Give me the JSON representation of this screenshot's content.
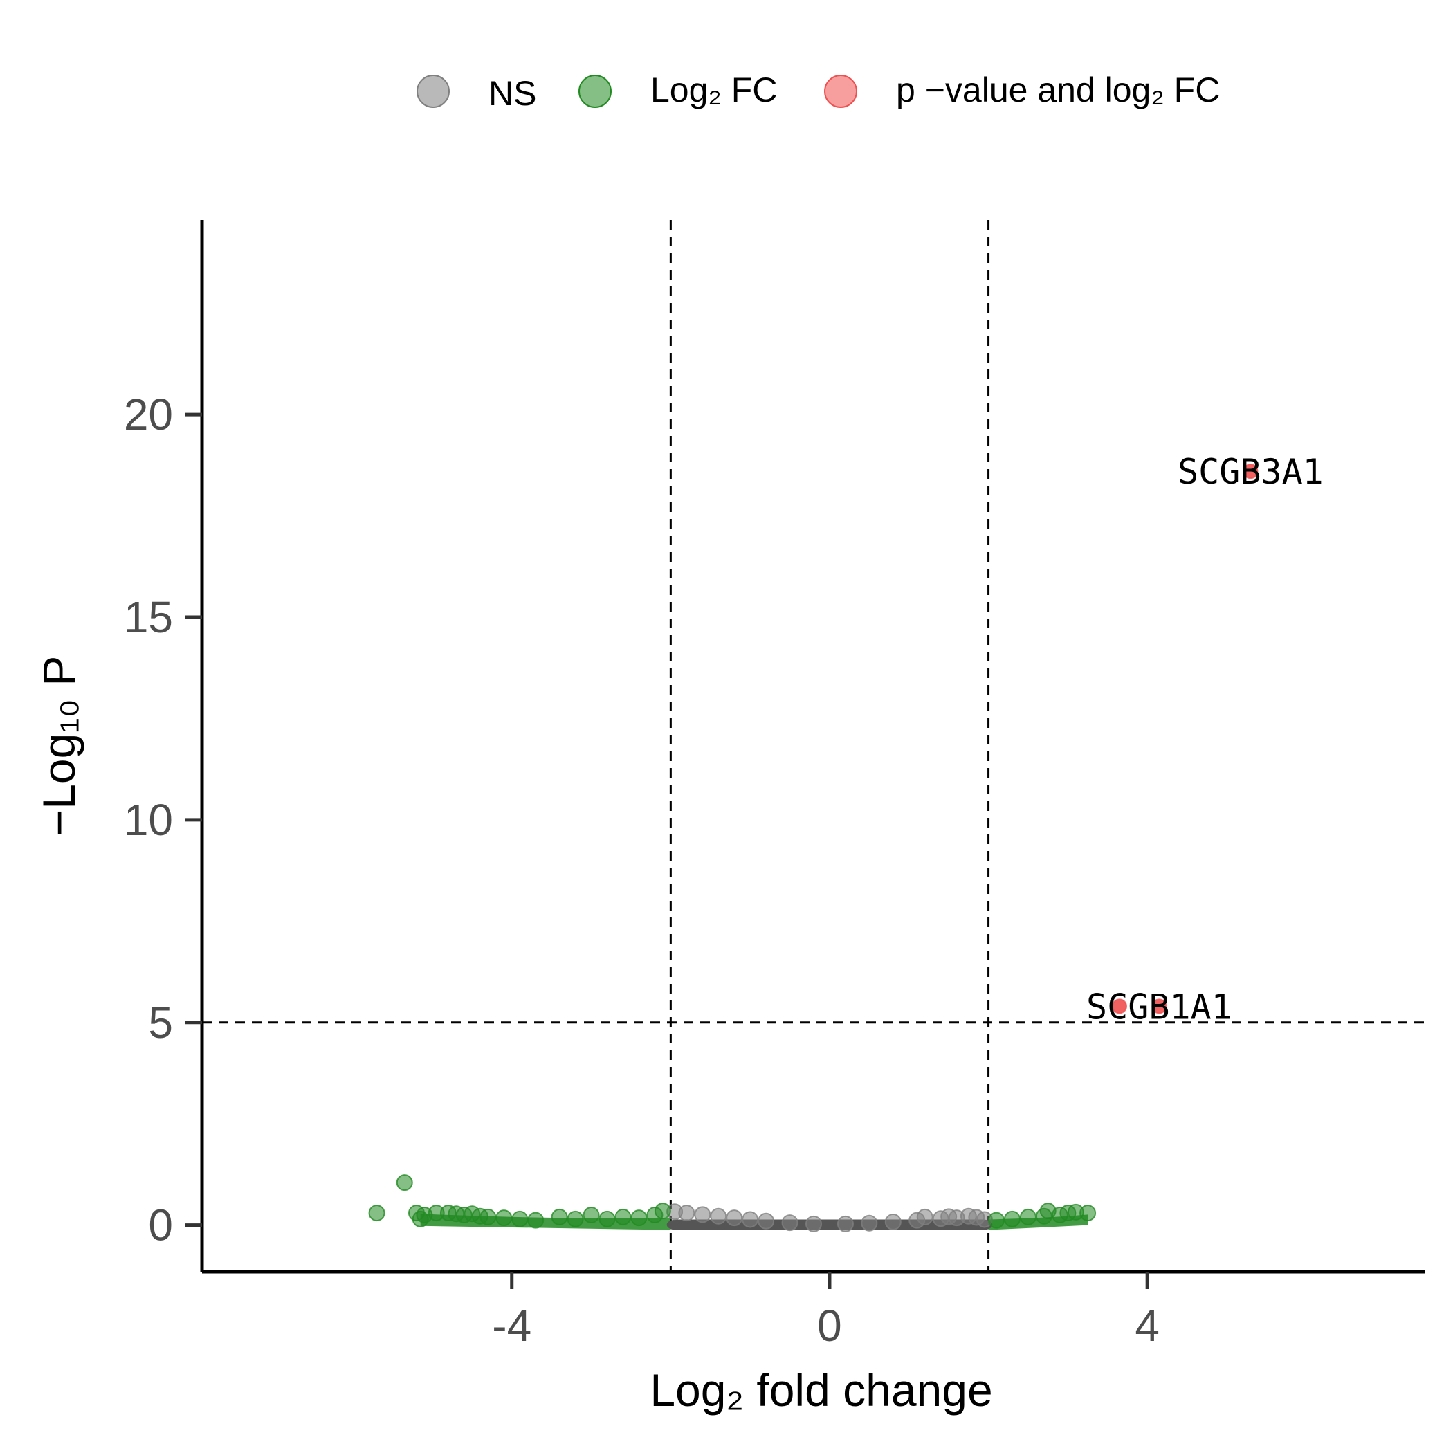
{
  "legend": {
    "position": "top",
    "items": [
      {
        "key": "ns",
        "label": "NS",
        "color": "#808080"
      },
      {
        "key": "fc",
        "label": "Log₂ FC",
        "color": "#228b22"
      },
      {
        "key": "both",
        "label": "p −value and log₂ FC",
        "color": "#f05050"
      }
    ]
  },
  "chart_data": {
    "type": "scatter",
    "xlabel": "Log₂ fold change",
    "ylabel": "−Log₁₀ P",
    "xlim": [
      -7.9,
      7.5
    ],
    "ylim": [
      -1.15,
      24.8
    ],
    "x_ticks": [
      -4,
      0,
      4
    ],
    "y_ticks": [
      0,
      5,
      10,
      15,
      20
    ],
    "grid": false,
    "thresholds": {
      "log2fc": [
        -2,
        2
      ],
      "neg_log10_p": 5
    },
    "colors": {
      "ns": "#808080",
      "fc": "#228b22",
      "both": "#f05050",
      "ns_dense": "#555555"
    },
    "series": [
      {
        "name": "NS",
        "key": "ns",
        "points": [
          [
            -1.95,
            0.33
          ],
          [
            -1.8,
            0.3
          ],
          [
            -1.6,
            0.26
          ],
          [
            -1.4,
            0.22
          ],
          [
            -1.2,
            0.18
          ],
          [
            -1.0,
            0.14
          ],
          [
            -0.8,
            0.1
          ],
          [
            -0.5,
            0.06
          ],
          [
            -0.2,
            0.03
          ],
          [
            0.2,
            0.03
          ],
          [
            0.5,
            0.05
          ],
          [
            0.8,
            0.08
          ],
          [
            1.1,
            0.12
          ],
          [
            1.2,
            0.2
          ],
          [
            1.4,
            0.16
          ],
          [
            1.5,
            0.21
          ],
          [
            1.6,
            0.18
          ],
          [
            1.75,
            0.22
          ],
          [
            1.85,
            0.19
          ],
          [
            1.95,
            0.14
          ]
        ]
      },
      {
        "name": "Log₂ FC",
        "key": "fc",
        "points": [
          [
            -5.7,
            0.3
          ],
          [
            -5.35,
            1.05
          ],
          [
            -5.2,
            0.3
          ],
          [
            -5.15,
            0.15
          ],
          [
            -5.1,
            0.25
          ],
          [
            -4.95,
            0.3
          ],
          [
            -4.8,
            0.3
          ],
          [
            -4.7,
            0.28
          ],
          [
            -4.6,
            0.25
          ],
          [
            -4.5,
            0.28
          ],
          [
            -4.4,
            0.22
          ],
          [
            -4.3,
            0.2
          ],
          [
            -4.1,
            0.18
          ],
          [
            -3.9,
            0.15
          ],
          [
            -3.7,
            0.12
          ],
          [
            -3.4,
            0.2
          ],
          [
            -3.2,
            0.15
          ],
          [
            -3.0,
            0.25
          ],
          [
            -2.8,
            0.15
          ],
          [
            -2.6,
            0.2
          ],
          [
            -2.4,
            0.18
          ],
          [
            -2.2,
            0.25
          ],
          [
            -2.1,
            0.35
          ],
          [
            2.1,
            0.12
          ],
          [
            2.3,
            0.15
          ],
          [
            2.5,
            0.2
          ],
          [
            2.7,
            0.22
          ],
          [
            2.75,
            0.35
          ],
          [
            2.9,
            0.25
          ],
          [
            3.0,
            0.3
          ],
          [
            3.1,
            0.32
          ],
          [
            3.25,
            0.3
          ]
        ]
      },
      {
        "name": "p −value and log₂ FC",
        "key": "both",
        "points": [
          [
            5.3,
            18.6
          ],
          [
            3.65,
            5.4
          ],
          [
            4.15,
            5.4
          ]
        ]
      }
    ],
    "annotations": [
      {
        "text": "SCGB3A1",
        "x": 5.3,
        "y": 18.6
      },
      {
        "text": "SCGB1A1",
        "x": 4.15,
        "y": 5.4
      }
    ]
  }
}
